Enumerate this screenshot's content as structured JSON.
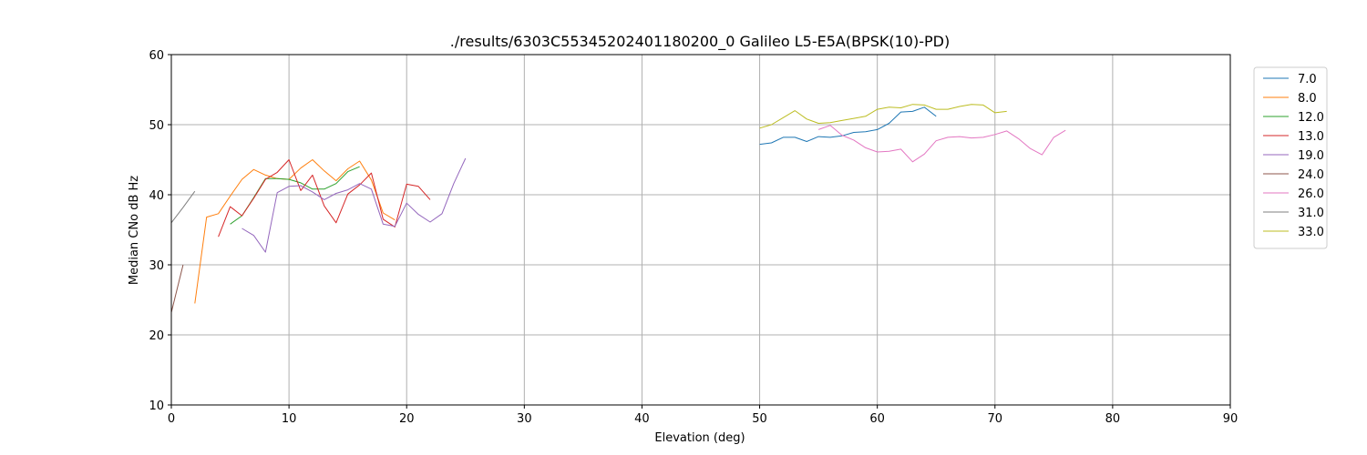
{
  "chart_data": {
    "type": "line",
    "title": "./results/6303C55345202401180200_0 Galileo L5-E5A(BPSK(10)-PD)",
    "xlabel": "Elevation (deg)",
    "ylabel": "Median CNo dB Hz",
    "xlim": [
      0,
      90
    ],
    "ylim": [
      10,
      60
    ],
    "xticks": [
      0,
      10,
      20,
      30,
      40,
      50,
      60,
      70,
      80,
      90
    ],
    "yticks": [
      10,
      20,
      30,
      40,
      50,
      60
    ],
    "xtick_labels": [
      "0",
      "10",
      "20",
      "30",
      "40",
      "50",
      "60",
      "70",
      "80",
      "90"
    ],
    "ytick_labels": [
      "10",
      "20",
      "30",
      "40",
      "50",
      "60"
    ],
    "grid": true,
    "legend_position": "outside-top-right",
    "series": [
      {
        "name": "7.0",
        "color": "#1f77b4",
        "x": [
          50,
          51,
          52,
          53,
          54,
          55,
          56,
          57,
          58,
          59,
          60,
          61,
          62,
          63,
          64,
          65
        ],
        "y": [
          47.2,
          47.4,
          48.2,
          48.2,
          47.6,
          48.3,
          48.2,
          48.4,
          48.9,
          49.0,
          49.3,
          50.2,
          51.8,
          51.9,
          52.5,
          51.2
        ]
      },
      {
        "name": "8.0",
        "color": "#ff7f0e",
        "x": [
          2,
          3,
          4,
          5,
          6,
          7,
          8,
          9,
          10,
          11,
          12,
          13,
          14,
          15,
          16,
          17,
          18,
          19
        ],
        "y": [
          24.5,
          36.8,
          37.3,
          39.8,
          42.2,
          43.6,
          42.8,
          42.3,
          42.2,
          43.8,
          45.0,
          43.4,
          42.0,
          43.7,
          44.8,
          42.1,
          37.4,
          36.4
        ]
      },
      {
        "name": "12.0",
        "color": "#2ca02c",
        "x": [
          5,
          6,
          7,
          8,
          9,
          10,
          11,
          12,
          13,
          14,
          15,
          16
        ],
        "y": [
          35.8,
          37.0,
          39.6,
          42.3,
          42.3,
          42.2,
          41.7,
          40.8,
          40.8,
          41.6,
          43.3,
          44.0
        ]
      },
      {
        "name": "13.0",
        "color": "#d62728",
        "x": [
          4,
          5,
          6,
          7,
          8,
          9,
          10,
          11,
          12,
          13,
          14,
          15,
          16,
          17,
          18,
          19,
          20,
          21,
          22
        ],
        "y": [
          34.0,
          38.3,
          37.0,
          39.5,
          42.2,
          43.2,
          45.0,
          40.6,
          42.8,
          38.4,
          36.0,
          40.1,
          41.4,
          43.1,
          36.5,
          35.4,
          41.5,
          41.2,
          39.3
        ]
      },
      {
        "name": "19.0",
        "color": "#9467bd",
        "x": [
          6,
          7,
          8,
          9,
          10,
          11,
          12,
          13,
          14,
          15,
          16,
          17,
          18,
          19,
          20,
          21,
          22,
          23,
          24,
          25
        ],
        "y": [
          35.2,
          34.2,
          31.8,
          40.3,
          41.2,
          41.3,
          40.4,
          39.3,
          40.2,
          40.7,
          41.6,
          40.8,
          35.8,
          35.5,
          38.8,
          37.2,
          36.1,
          37.3,
          41.6,
          45.2
        ]
      },
      {
        "name": "24.0",
        "color": "#8c564b",
        "x": [
          0,
          1
        ],
        "y": [
          23.2,
          30.0
        ]
      },
      {
        "name": "26.0",
        "color": "#e377c2",
        "x": [
          55,
          56,
          57,
          58,
          59,
          60,
          61,
          62,
          63,
          64,
          65,
          66,
          67,
          68,
          69,
          70,
          71,
          72,
          73,
          74,
          75,
          76
        ],
        "y": [
          49.3,
          49.9,
          48.5,
          47.8,
          46.7,
          46.1,
          46.2,
          46.5,
          44.7,
          45.8,
          47.7,
          48.2,
          48.3,
          48.1,
          48.2,
          48.6,
          49.1,
          48.0,
          46.6,
          45.7,
          48.2,
          49.2
        ]
      },
      {
        "name": "31.0",
        "color": "#7f7f7f",
        "x": [
          0,
          1,
          2
        ],
        "y": [
          36.0,
          38.2,
          40.5
        ]
      },
      {
        "name": "33.0",
        "color": "#bcbd22",
        "x": [
          50,
          51,
          52,
          53,
          54,
          55,
          56,
          57,
          58,
          59,
          60,
          61,
          62,
          63,
          64,
          65,
          66,
          67,
          68,
          69,
          70,
          71
        ],
        "y": [
          49.5,
          50.0,
          51.0,
          52.0,
          50.8,
          50.2,
          50.3,
          50.6,
          50.9,
          51.2,
          52.2,
          52.5,
          52.4,
          52.9,
          52.8,
          52.2,
          52.2,
          52.6,
          52.9,
          52.8,
          51.7,
          51.9
        ]
      }
    ]
  }
}
